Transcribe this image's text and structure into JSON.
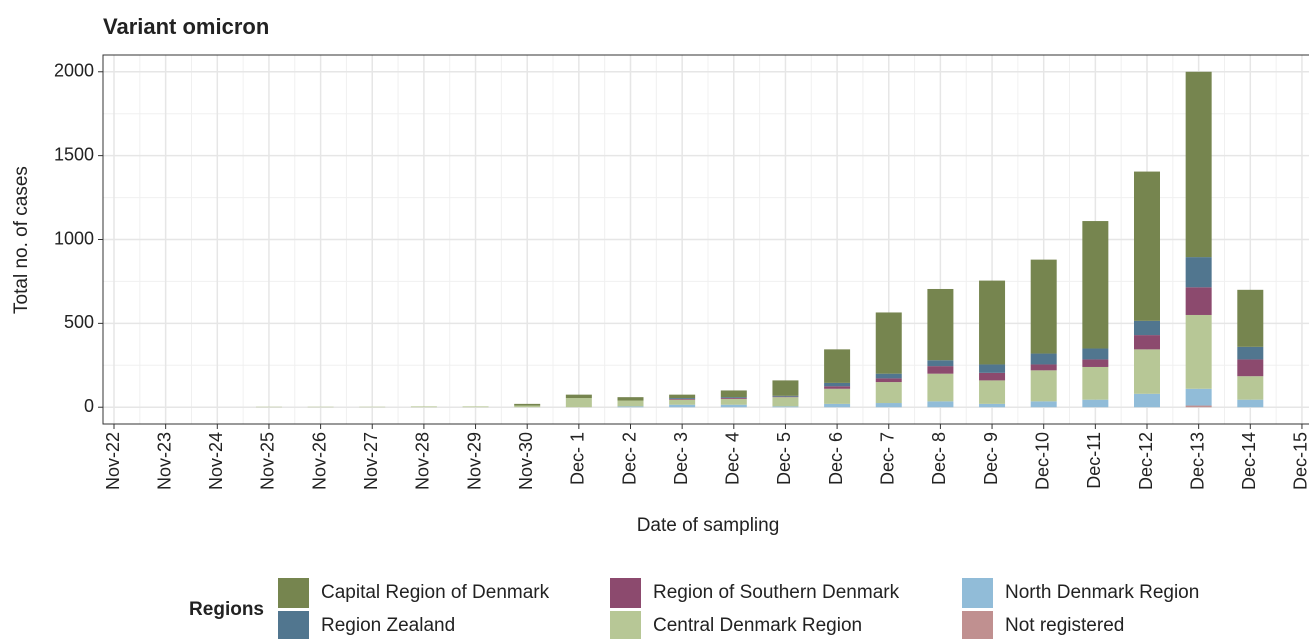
{
  "chart_data": {
    "type": "stacked_bar",
    "title": "Variant omicron",
    "x_label": "Date of sampling",
    "y_label": "Total no. of cases",
    "legend_title": "Regions",
    "categories": [
      "Nov-22",
      "Nov-23",
      "Nov-24",
      "Nov-25",
      "Nov-26",
      "Nov-27",
      "Nov-28",
      "Nov-29",
      "Nov-30",
      "Dec- 1",
      "Dec- 2",
      "Dec- 3",
      "Dec- 4",
      "Dec- 5",
      "Dec- 6",
      "Dec- 7",
      "Dec- 8",
      "Dec- 9",
      "Dec-10",
      "Dec-11",
      "Dec-12",
      "Dec-13",
      "Dec-14",
      "Dec-15"
    ],
    "series": [
      {
        "name": "Capital Region of Denmark",
        "color": "#76854f",
        "values": [
          0,
          0,
          0,
          0,
          0,
          0,
          0,
          0,
          10,
          20,
          20,
          20,
          40,
          92,
          200,
          365,
          425,
          500,
          560,
          760,
          890,
          1105,
          340,
          0
        ]
      },
      {
        "name": "Region Zealand",
        "color": "#51768f",
        "values": [
          0,
          0,
          0,
          0,
          0,
          0,
          0,
          0,
          0,
          0,
          0,
          5,
          5,
          5,
          20,
          28,
          35,
          50,
          65,
          65,
          85,
          180,
          75,
          0
        ]
      },
      {
        "name": "Region of Southern Denmark",
        "color": "#8c4a6e",
        "values": [
          0,
          0,
          0,
          0,
          0,
          0,
          0,
          0,
          0,
          0,
          0,
          5,
          5,
          3,
          15,
          22,
          45,
          45,
          35,
          45,
          85,
          165,
          100,
          0
        ]
      },
      {
        "name": "Central Denmark Region",
        "color": "#b7c796",
        "values": [
          0,
          0,
          0,
          3,
          3,
          3,
          5,
          5,
          10,
          55,
          35,
          30,
          35,
          55,
          90,
          125,
          165,
          140,
          185,
          195,
          265,
          440,
          140,
          0
        ]
      },
      {
        "name": "North Denmark Region",
        "color": "#91bcd8",
        "values": [
          0,
          0,
          0,
          0,
          0,
          0,
          0,
          0,
          0,
          0,
          5,
          15,
          15,
          5,
          20,
          25,
          35,
          20,
          35,
          45,
          80,
          100,
          45,
          0
        ]
      },
      {
        "name": "Not registered",
        "color": "#c09090",
        "values": [
          0,
          0,
          0,
          0,
          0,
          0,
          0,
          0,
          0,
          0,
          0,
          0,
          0,
          0,
          0,
          0,
          0,
          0,
          0,
          0,
          0,
          10,
          0,
          0
        ]
      }
    ],
    "ylim": [
      -100,
      2100
    ],
    "yticks": [
      0,
      500,
      1000,
      1500,
      2000
    ],
    "grid": true
  }
}
